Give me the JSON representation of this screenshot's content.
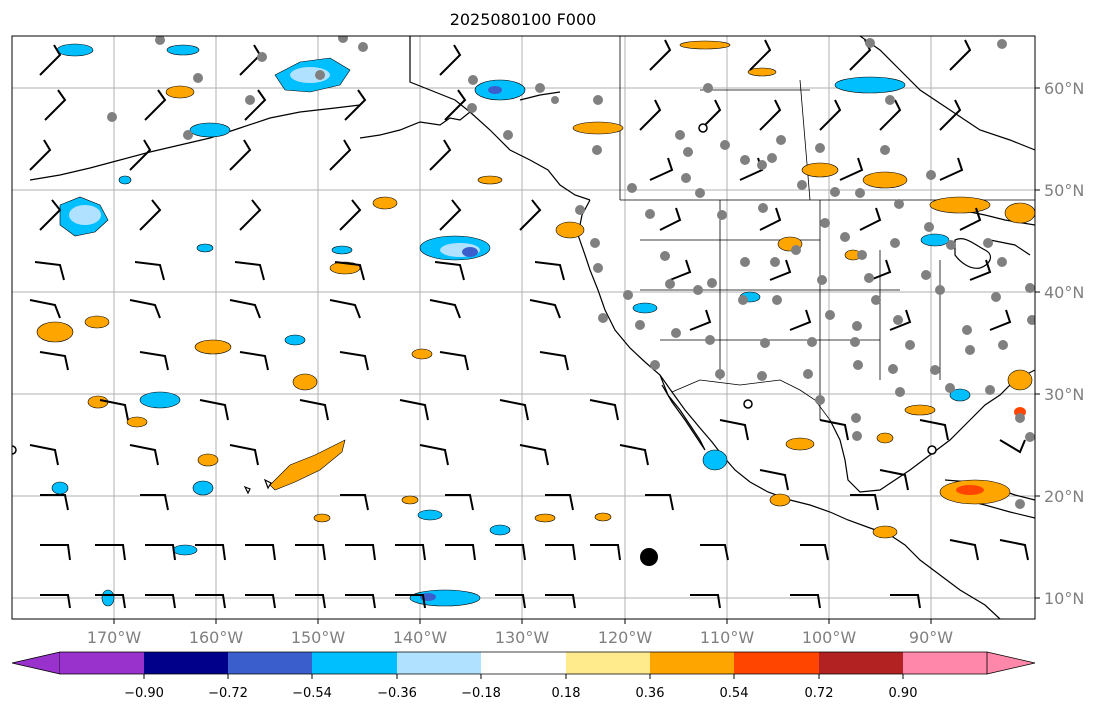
{
  "map": {
    "title": "2025080100 F000",
    "lat_labels": [
      "60°N",
      "50°N",
      "40°N",
      "30°N",
      "20°N",
      "10°N"
    ],
    "lon_labels": [
      "170°W",
      "160°W",
      "150°W",
      "140°W",
      "130°W",
      "120°W",
      "110°W",
      "100°W",
      "90°W"
    ]
  },
  "colorbar": {
    "ticks": [
      "−0.90",
      "−0.72",
      "−0.54",
      "−0.36",
      "−0.18",
      "0.18",
      "0.36",
      "0.54",
      "0.72",
      "0.90"
    ],
    "colors": [
      "#9932cc",
      "#00008b",
      "#3a5fcd",
      "#00bfff",
      "#b0e2ff",
      "#ffffff",
      "#ffea8c",
      "#ffa500",
      "#ff4500",
      "#b22222",
      "#ff88aa"
    ]
  }
}
